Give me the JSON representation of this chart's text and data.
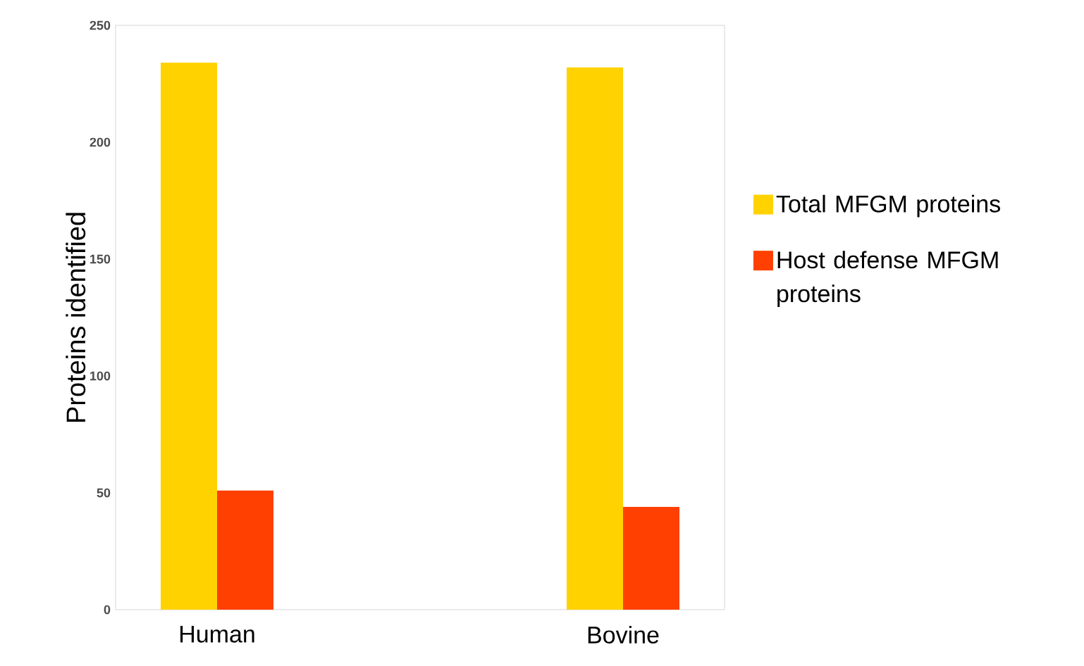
{
  "chart_data": {
    "type": "bar",
    "ylabel": "Proteins identified",
    "categories": [
      "Human",
      "Bovine"
    ],
    "series": [
      {
        "name": "Total MFGM proteins",
        "color": "#ffd200",
        "values": [
          234,
          232
        ]
      },
      {
        "name": "Host defense MFGM proteins",
        "color": "#ff4000",
        "values": [
          51,
          44
        ]
      }
    ],
    "ylim": [
      0,
      250
    ],
    "yticks": [
      0,
      50,
      100,
      150,
      200,
      250
    ],
    "grid": false,
    "legend": "right"
  }
}
